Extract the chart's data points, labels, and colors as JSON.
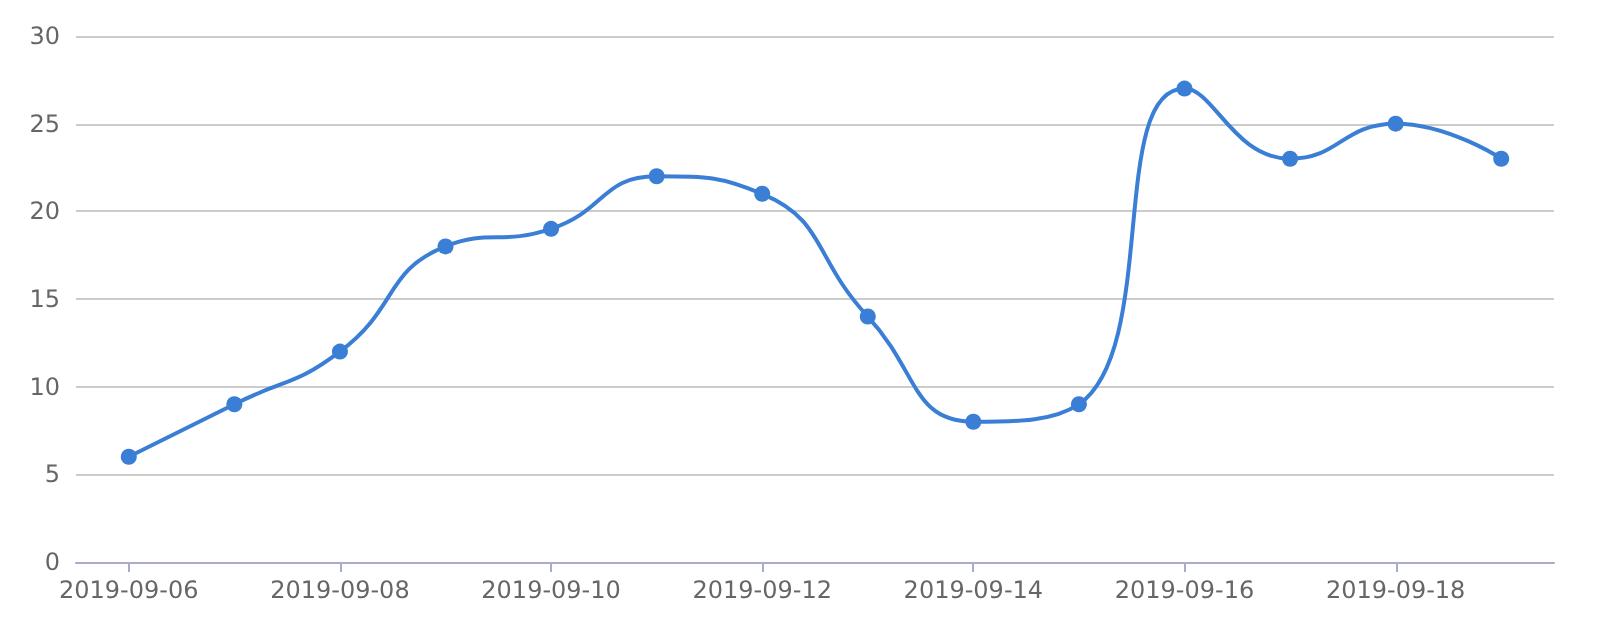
{
  "chart_data": {
    "type": "line",
    "categories": [
      "2019-09-06",
      null,
      "2019-09-08",
      null,
      "2019-09-10",
      null,
      "2019-09-12",
      null,
      "2019-09-14",
      null,
      "2019-09-16",
      null,
      "2019-09-18",
      null
    ],
    "series": [
      {
        "color": "#3a7fd5",
        "values": [
          6,
          9,
          12,
          18,
          19,
          22,
          21,
          14,
          8,
          9,
          27,
          23,
          25,
          23
        ]
      }
    ],
    "ylim": [
      0,
      30
    ],
    "yticks": [
      0,
      5,
      10,
      15,
      20,
      25,
      30
    ],
    "grid": "y",
    "marker": "circle",
    "line_style": "solid"
  }
}
